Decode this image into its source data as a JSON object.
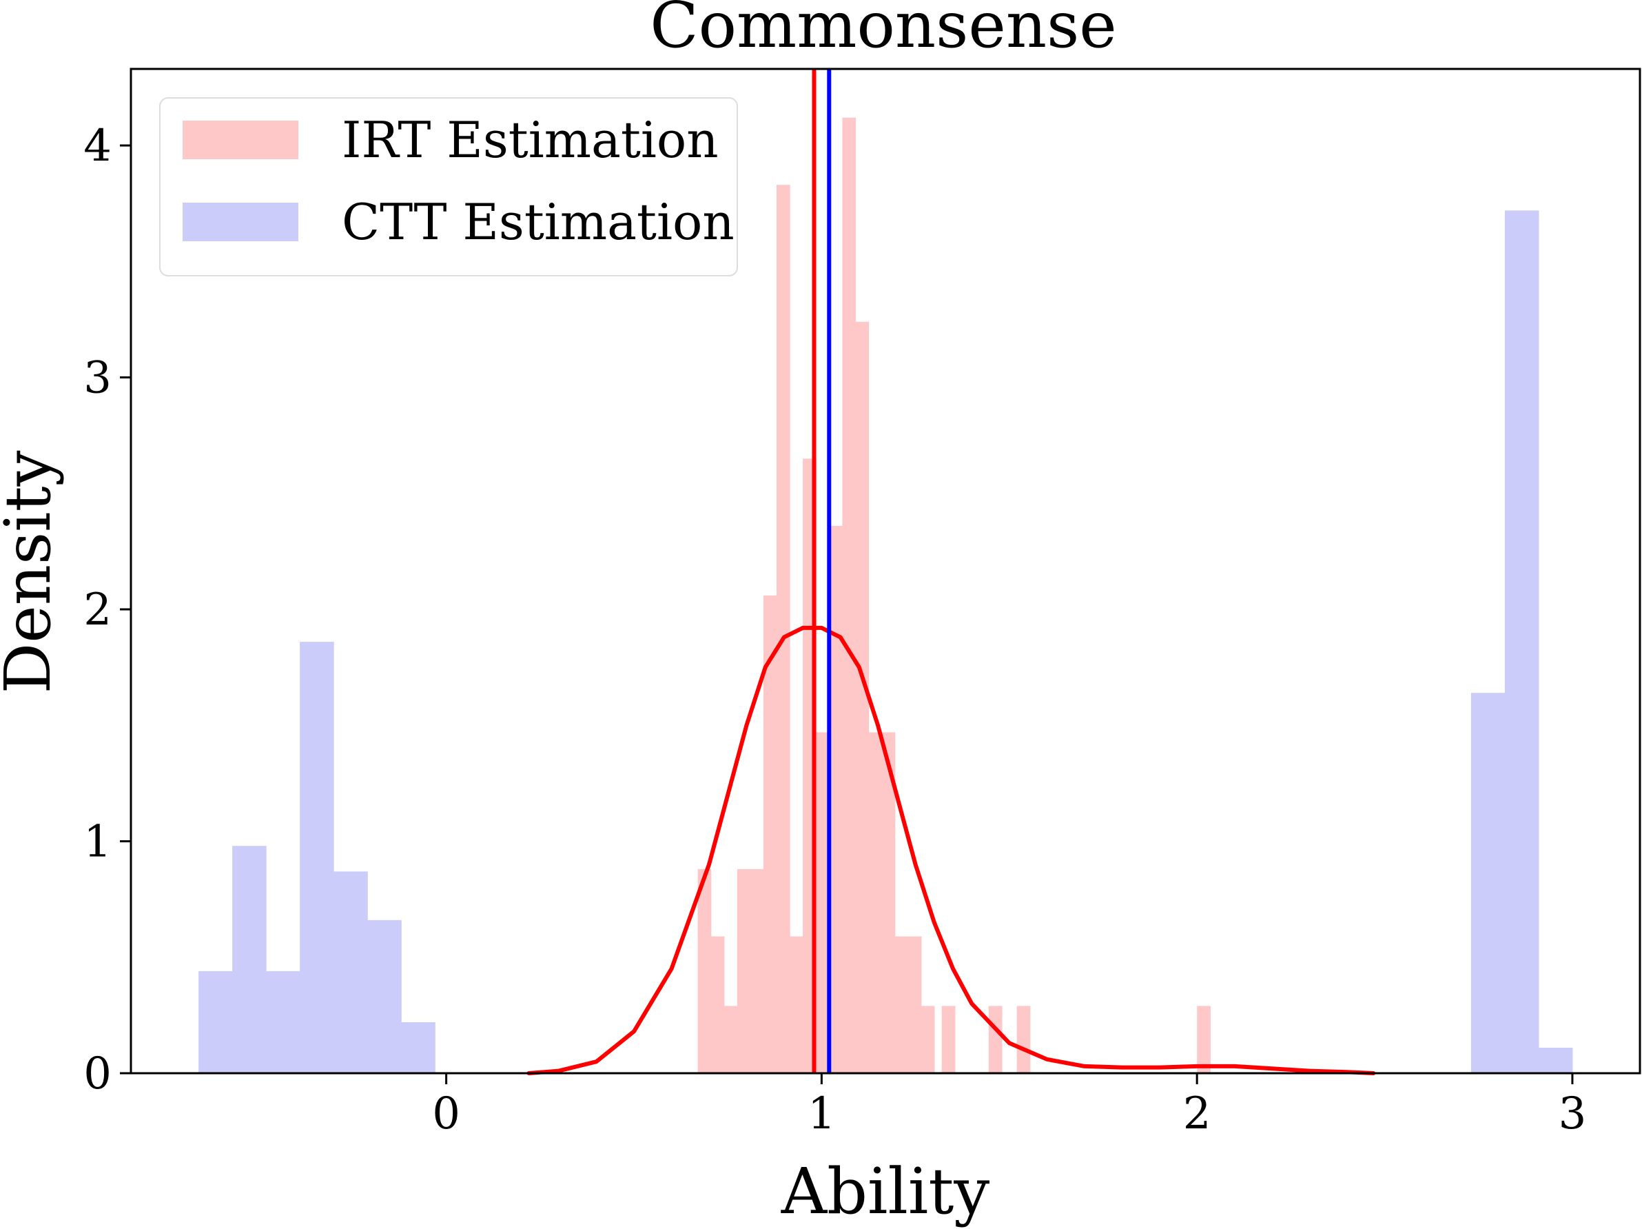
{
  "chart_data": {
    "type": "bar",
    "title": "Commonsense",
    "xlabel": "Ability",
    "ylabel": "Density",
    "xlim": [
      -0.84,
      3.18
    ],
    "ylim": [
      0,
      4.33
    ],
    "x_ticks": [
      0,
      1,
      2,
      3
    ],
    "y_ticks": [
      0,
      1,
      2,
      3,
      4
    ],
    "grid": false,
    "legend_position": "top-left",
    "series": [
      {
        "name": "IRT Estimation",
        "kind": "histogram",
        "color": "#ffc8c8",
        "bins": [
          {
            "x0": 0.67,
            "x1": 0.705,
            "y": 0.88
          },
          {
            "x0": 0.705,
            "x1": 0.74,
            "y": 0.59
          },
          {
            "x0": 0.74,
            "x1": 0.775,
            "y": 0.29
          },
          {
            "x0": 0.775,
            "x1": 0.81,
            "y": 0.88
          },
          {
            "x0": 0.81,
            "x1": 0.845,
            "y": 0.88
          },
          {
            "x0": 0.845,
            "x1": 0.88,
            "y": 2.06
          },
          {
            "x0": 0.88,
            "x1": 0.915,
            "y": 3.83
          },
          {
            "x0": 0.915,
            "x1": 0.95,
            "y": 0.59
          },
          {
            "x0": 0.95,
            "x1": 0.985,
            "y": 2.65
          },
          {
            "x0": 0.985,
            "x1": 1.02,
            "y": 1.47
          },
          {
            "x0": 1.02,
            "x1": 1.055,
            "y": 2.36
          },
          {
            "x0": 1.055,
            "x1": 1.09,
            "y": 4.12
          },
          {
            "x0": 1.09,
            "x1": 1.125,
            "y": 3.24
          },
          {
            "x0": 1.125,
            "x1": 1.16,
            "y": 1.47
          },
          {
            "x0": 1.16,
            "x1": 1.195,
            "y": 1.47
          },
          {
            "x0": 1.195,
            "x1": 1.23,
            "y": 0.59
          },
          {
            "x0": 1.23,
            "x1": 1.265,
            "y": 0.59
          },
          {
            "x0": 1.265,
            "x1": 1.3,
            "y": 0.29
          },
          {
            "x0": 1.32,
            "x1": 1.355,
            "y": 0.29
          },
          {
            "x0": 1.445,
            "x1": 1.48,
            "y": 0.29
          },
          {
            "x0": 1.52,
            "x1": 1.555,
            "y": 0.29
          },
          {
            "x0": 2.0,
            "x1": 2.035,
            "y": 0.29
          }
        ]
      },
      {
        "name": "CTT Estimation",
        "kind": "histogram",
        "color": "#ccccfa",
        "bins": [
          {
            "x0": -0.66,
            "x1": -0.57,
            "y": 0.44
          },
          {
            "x0": -0.57,
            "x1": -0.48,
            "y": 0.98
          },
          {
            "x0": -0.48,
            "x1": -0.39,
            "y": 0.44
          },
          {
            "x0": -0.39,
            "x1": -0.3,
            "y": 1.86
          },
          {
            "x0": -0.3,
            "x1": -0.21,
            "y": 0.87
          },
          {
            "x0": -0.21,
            "x1": -0.12,
            "y": 0.66
          },
          {
            "x0": -0.12,
            "x1": -0.03,
            "y": 0.22
          },
          {
            "x0": 2.73,
            "x1": 2.82,
            "y": 1.64
          },
          {
            "x0": 2.82,
            "x1": 2.91,
            "y": 3.72
          },
          {
            "x0": 2.91,
            "x1": 3.0,
            "y": 0.11
          }
        ]
      }
    ],
    "kde_line": {
      "color": "#ff0000",
      "x": [
        0.22,
        0.3,
        0.4,
        0.5,
        0.6,
        0.7,
        0.75,
        0.8,
        0.85,
        0.9,
        0.95,
        1.0,
        1.05,
        1.1,
        1.15,
        1.2,
        1.25,
        1.3,
        1.35,
        1.4,
        1.5,
        1.6,
        1.7,
        1.8,
        1.9,
        2.0,
        2.1,
        2.2,
        2.3,
        2.4,
        2.47
      ],
      "y": [
        0.0,
        0.01,
        0.05,
        0.18,
        0.45,
        0.9,
        1.2,
        1.5,
        1.75,
        1.88,
        1.92,
        1.92,
        1.88,
        1.75,
        1.5,
        1.2,
        0.9,
        0.65,
        0.45,
        0.3,
        0.13,
        0.06,
        0.03,
        0.025,
        0.025,
        0.03,
        0.03,
        0.02,
        0.01,
        0.005,
        0.0
      ]
    },
    "vertical_lines": [
      {
        "x": 0.98,
        "color": "#ff0000"
      },
      {
        "x": 1.02,
        "color": "#0000ff"
      }
    ]
  }
}
